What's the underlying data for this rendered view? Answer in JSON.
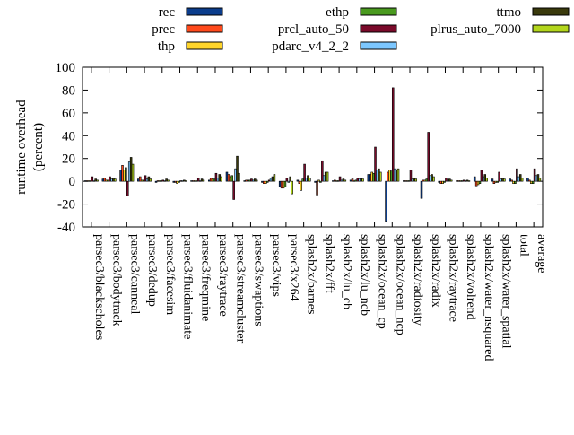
{
  "chart_data": {
    "type": "bar",
    "title": "",
    "xlabel": "",
    "ylabel": "runtime overhead (percent)",
    "ylabel_lines": [
      "runtime overhead",
      "(percent)"
    ],
    "ylim": [
      -40,
      100
    ],
    "yticks": [
      -40,
      -20,
      0,
      20,
      40,
      60,
      80,
      100
    ],
    "grid": false,
    "legend_position": "top",
    "categories": [
      "parsec3/blackscholes",
      "parsec3/bodytrack",
      "parsec3/canneal",
      "parsec3/dedup",
      "parsec3/facesim",
      "parsec3/fluidanimate",
      "parsec3/freqmine",
      "parsec3/raytrace",
      "parsec3/streamcluster",
      "parsec3/swaptions",
      "parsec3/vips",
      "parsec3/x264",
      "splash2x/barnes",
      "splash2x/fft",
      "splash2x/lu_cb",
      "splash2x/lu_ncb",
      "splash2x/ocean_cp",
      "splash2x/ocean_ncp",
      "splash2x/radiosity",
      "splash2x/radix",
      "splash2x/raytrace",
      "splash2x/volrend",
      "splash2x/water_nsquared",
      "splash2x/water_spatial",
      "total",
      "average"
    ],
    "series": [
      {
        "name": "rec",
        "color": "#0b3d8c",
        "values": [
          0.5,
          2,
          10,
          2,
          -1,
          -1,
          0.5,
          1,
          8,
          0.5,
          -1,
          -5,
          1,
          -1,
          0.5,
          1,
          6,
          -35,
          0.5,
          -15,
          -1,
          0.5,
          4,
          2,
          2,
          3
        ]
      },
      {
        "name": "prec",
        "color": "#ff4a1c",
        "values": [
          0.5,
          3,
          14,
          4,
          0.5,
          -1,
          0.5,
          3,
          6,
          1,
          -2,
          -6,
          -2,
          -12,
          1,
          2,
          6,
          8,
          0.5,
          1,
          -2,
          0.5,
          -4,
          -2,
          1,
          1
        ]
      },
      {
        "name": "thp",
        "color": "#ffd52b",
        "values": [
          0.5,
          1,
          10,
          1,
          0.5,
          -2,
          0.5,
          2,
          4,
          1,
          -2,
          -6,
          -8,
          1,
          0.5,
          0.5,
          8,
          10,
          0.5,
          1,
          -2,
          0.5,
          -3,
          -1,
          -2,
          -2
        ]
      },
      {
        "name": "ethp",
        "color": "#4a9a1f",
        "values": [
          0.5,
          1,
          12,
          1,
          0.5,
          -1,
          0.5,
          2,
          5,
          1,
          -1,
          -5,
          2,
          -1,
          0.5,
          1,
          7,
          9,
          0.5,
          2,
          -1,
          0.5,
          -2,
          -1,
          -2,
          -2
        ]
      },
      {
        "name": "prcl_auto_50",
        "color": "#7a0a2a",
        "values": [
          4,
          4,
          -13,
          5,
          1,
          0.5,
          3,
          7,
          -16,
          2,
          1,
          3,
          15,
          18,
          4,
          3,
          30,
          82,
          10,
          43,
          3,
          1,
          10,
          8,
          11,
          11
        ]
      },
      {
        "name": "pdarc_v4_2_2",
        "color": "#7cc7ff",
        "values": [
          0.5,
          2,
          17,
          2,
          0.5,
          0.5,
          0.5,
          3,
          11,
          1,
          3,
          -1,
          3,
          5,
          1,
          2,
          10,
          11,
          2,
          5,
          1,
          0.5,
          4,
          2,
          4,
          5
        ]
      },
      {
        "name": "ttmo",
        "color": "#3a3a0c",
        "values": [
          2,
          3,
          21,
          4,
          2,
          1,
          2,
          6,
          22,
          2,
          4,
          4,
          5,
          8,
          2,
          3,
          11,
          10,
          3,
          6,
          2,
          1,
          6,
          3,
          6,
          6
        ]
      },
      {
        "name": "plrus_auto_7000",
        "color": "#b3d61c",
        "values": [
          1,
          2,
          15,
          2,
          1,
          0.5,
          1,
          4,
          7,
          1,
          6,
          -11,
          3,
          8,
          1,
          2,
          8,
          11,
          2,
          4,
          1,
          0.5,
          3,
          2,
          3,
          3
        ]
      }
    ]
  }
}
